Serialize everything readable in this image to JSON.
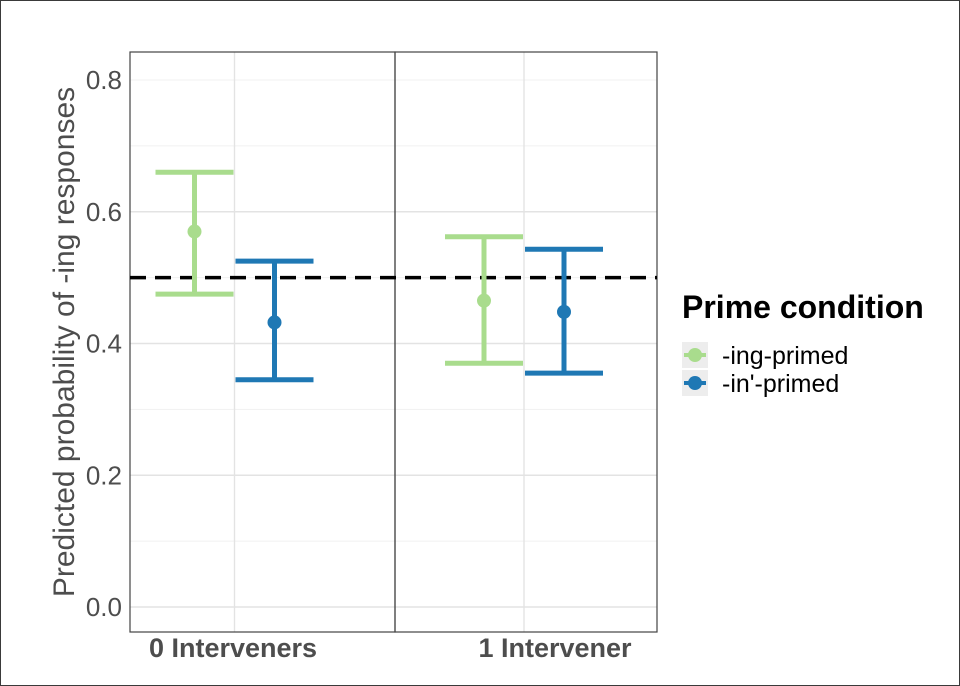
{
  "chart_data": {
    "type": "errorbar",
    "ylabel": "Predicted probability of -ing responses",
    "ylim": [
      0.0,
      0.8
    ],
    "yticks": [
      "0.0",
      "0.2",
      "0.4",
      "0.6",
      "0.8"
    ],
    "categories": [
      "0 Interveners",
      "1 Intervener"
    ],
    "reference_line": 0.5,
    "legend": {
      "title": "Prime condition",
      "position": "right"
    },
    "grid": true,
    "series": [
      {
        "name": "-ing-primed",
        "color": "#a9dc8d",
        "points": [
          {
            "category": "0 Interveners",
            "estimate": 0.57,
            "lower": 0.475,
            "upper": 0.66
          },
          {
            "category": "1 Intervener",
            "estimate": 0.465,
            "lower": 0.37,
            "upper": 0.562
          }
        ]
      },
      {
        "name": "-in'-primed",
        "color": "#1f78b4",
        "points": [
          {
            "category": "0 Interveners",
            "estimate": 0.432,
            "lower": 0.345,
            "upper": 0.525
          },
          {
            "category": "1 Intervener",
            "estimate": 0.448,
            "lower": 0.355,
            "upper": 0.543
          }
        ]
      }
    ]
  }
}
